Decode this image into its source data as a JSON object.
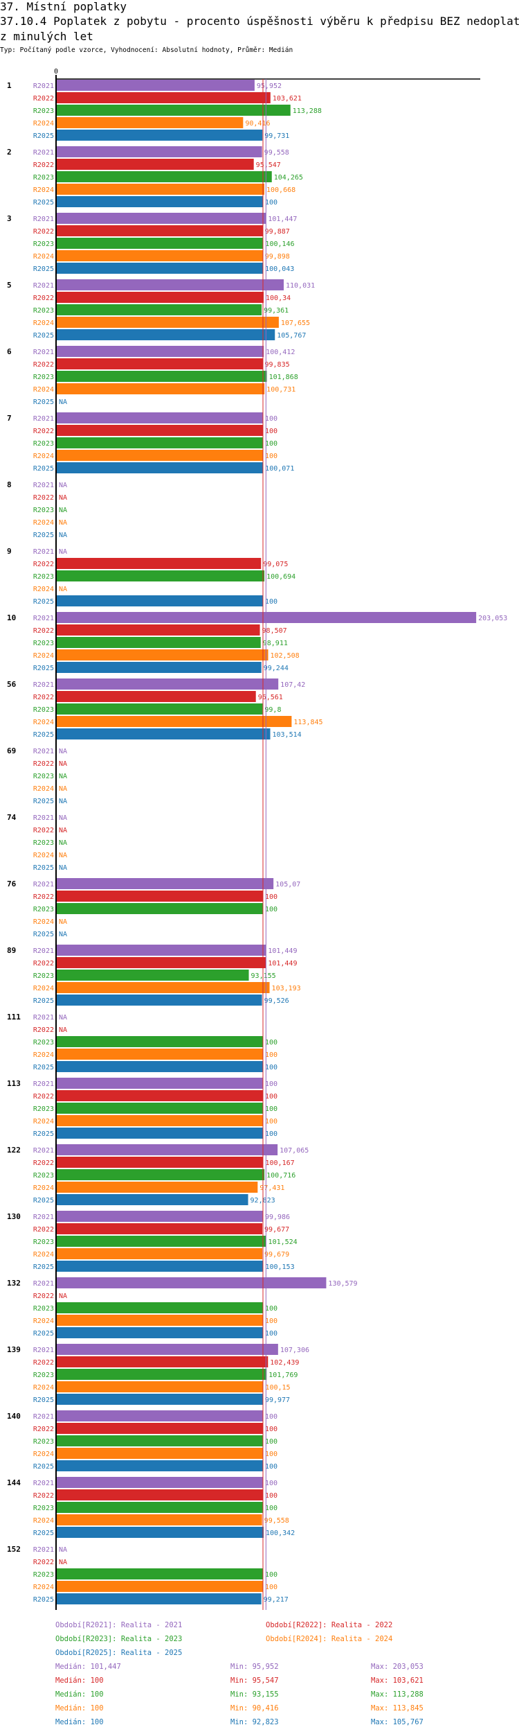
{
  "header": {
    "section": "37. Místní poplatky",
    "title_line1": "37.10.4 Poplatek z pobytu - procento úspěšnosti výběru k předpisu BEZ nedoplatků",
    "title_line2": "z minulých let",
    "subtitle": "Typ: Počítaný podle vzorce, Vyhodnocení: Absolutní hodnoty, Průměr: Medián"
  },
  "chart_data": {
    "type": "bar",
    "orientation": "horizontal",
    "x_tick_labels": [
      "0"
    ],
    "xlim": [
      0,
      205
    ],
    "na_label": "NA",
    "series": [
      {
        "key": "R2021",
        "color": "#9467bd",
        "legend": "Období[R2021]: Realita - 2021"
      },
      {
        "key": "R2022",
        "color": "#d62728",
        "legend": "Období[R2022]: Realita - 2022"
      },
      {
        "key": "R2023",
        "color": "#2ca02c",
        "legend": "Období[R2023]: Realita - 2023"
      },
      {
        "key": "R2024",
        "color": "#ff7f0e",
        "legend": "Období[R2024]: Realita - 2024"
      },
      {
        "key": "R2025",
        "color": "#1f77b4",
        "legend": "Období[R2025]: Realita - 2025"
      }
    ],
    "groups": [
      {
        "label": "1",
        "values": [
          "95,952",
          "103,621",
          "113,288",
          "90,416",
          "99,731"
        ]
      },
      {
        "label": "2",
        "values": [
          "99,558",
          "95,547",
          "104,265",
          "100,668",
          "100"
        ]
      },
      {
        "label": "3",
        "values": [
          "101,447",
          "99,887",
          "100,146",
          "99,898",
          "100,043"
        ]
      },
      {
        "label": "5",
        "values": [
          "110,031",
          "100,34",
          "99,361",
          "107,655",
          "105,767"
        ]
      },
      {
        "label": "6",
        "values": [
          "100,412",
          "99,835",
          "101,868",
          "100,731",
          null
        ]
      },
      {
        "label": "7",
        "values": [
          "100",
          "100",
          "100",
          "100",
          "100,071"
        ]
      },
      {
        "label": "8",
        "values": [
          null,
          null,
          null,
          null,
          null
        ]
      },
      {
        "label": "9",
        "values": [
          null,
          "99,075",
          "100,694",
          null,
          "100"
        ]
      },
      {
        "label": "10",
        "values": [
          "203,053",
          "98,507",
          "98,911",
          "102,508",
          "99,244"
        ]
      },
      {
        "label": "56",
        "values": [
          "107,42",
          "96,561",
          "99,8",
          "113,845",
          "103,514"
        ]
      },
      {
        "label": "69",
        "values": [
          null,
          null,
          null,
          null,
          null
        ]
      },
      {
        "label": "74",
        "values": [
          null,
          null,
          null,
          null,
          null
        ]
      },
      {
        "label": "76",
        "values": [
          "105,07",
          "100",
          "100",
          null,
          null
        ]
      },
      {
        "label": "89",
        "values": [
          "101,449",
          "101,449",
          "93,155",
          "103,193",
          "99,526"
        ]
      },
      {
        "label": "111",
        "values": [
          null,
          null,
          "100",
          "100",
          "100"
        ]
      },
      {
        "label": "113",
        "values": [
          "100",
          "100",
          "100",
          "100",
          "100"
        ]
      },
      {
        "label": "122",
        "values": [
          "107,065",
          "100,167",
          "100,716",
          "97,431",
          "92,823"
        ]
      },
      {
        "label": "130",
        "values": [
          "99,986",
          "99,677",
          "101,524",
          "99,679",
          "100,153"
        ]
      },
      {
        "label": "132",
        "values": [
          "130,579",
          null,
          "100",
          "100",
          "100"
        ]
      },
      {
        "label": "139",
        "values": [
          "107,306",
          "102,439",
          "101,769",
          "100,15",
          "99,977"
        ]
      },
      {
        "label": "140",
        "values": [
          "100",
          "100",
          "100",
          "100",
          "100"
        ]
      },
      {
        "label": "144",
        "values": [
          "100",
          "100",
          "100",
          "99,558",
          "100,342"
        ]
      },
      {
        "label": "152",
        "values": [
          null,
          null,
          "100",
          "100",
          "99,217"
        ]
      }
    ],
    "stats": [
      {
        "median_label": "Medián:",
        "median": "101,447",
        "min_label": "Min:",
        "min": "95,952",
        "max_label": "Max:",
        "max": "203,053"
      },
      {
        "median_label": "Medián:",
        "median": "100",
        "min_label": "Min:",
        "min": "95,547",
        "max_label": "Max:",
        "max": "103,621"
      },
      {
        "median_label": "Medián:",
        "median": "100",
        "min_label": "Min:",
        "min": "93,155",
        "max_label": "Max:",
        "max": "113,288"
      },
      {
        "median_label": "Medián:",
        "median": "100",
        "min_label": "Min:",
        "min": "90,416",
        "max_label": "Max:",
        "max": "113,845"
      },
      {
        "median_label": "Medián:",
        "median": "100",
        "min_label": "Min:",
        "min": "92,823",
        "max_label": "Max:",
        "max": "105,767"
      }
    ]
  }
}
